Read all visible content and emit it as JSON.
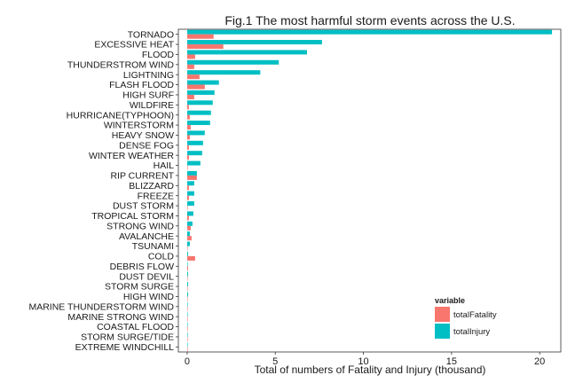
{
  "chart_data": {
    "type": "bar",
    "orientation": "horizontal",
    "title": "Fig.1 The most harmful storm events across the U.S.",
    "xlabel": "Total of numbers of Fatality and Injury (thousand)",
    "ylabel": "",
    "xlim": [
      -0.5,
      21.2
    ],
    "xticks": [
      0,
      5,
      10,
      15,
      20
    ],
    "xtick_labels": [
      "0",
      "5",
      "10",
      "15",
      "20"
    ],
    "grid": false,
    "legend": {
      "title": "variable",
      "placement": "bottom-right",
      "entries": [
        "totalFatality",
        "totalInjury"
      ]
    },
    "categories": [
      "TORNADO",
      "EXCESSIVE HEAT",
      "FLOOD",
      "THUNDERSTROM WIND",
      "LIGHTNING",
      "FLASH FLOOD",
      "HIGH SURF",
      "WILDFIRE",
      "HURRICANE(TYPHOON)",
      "WINTERSTORM",
      "HEAVY SNOW",
      "DENSE FOG",
      "WINTER WEATHER",
      "HAIL",
      "RIP CURRENT",
      "BLIZZARD",
      "FREEZE",
      "DUST STORM",
      "TROPICAL STORM",
      "STRONG WIND",
      "AVALANCHE",
      "TSUNAMI",
      "COLD",
      "DEBRIS FLOW",
      "DUST DEVIL",
      "STORM SURGE",
      "HIGH WIND",
      "MARINE THUNDERSTORM WIND",
      "MARINE STRONG WIND",
      "COASTAL FLOOD",
      "STORM SURGE/TIDE",
      "EXTREME WINDCHILL"
    ],
    "series": [
      {
        "name": "totalFatality",
        "color": "#F8766D",
        "values": [
          1.5,
          2.05,
          0.45,
          0.4,
          0.7,
          1.0,
          0.4,
          0.1,
          0.15,
          0.2,
          0.15,
          0.1,
          0.1,
          0.02,
          0.55,
          0.1,
          0.1,
          0.02,
          0.1,
          0.2,
          0.25,
          0.03,
          0.45,
          0.05,
          0.02,
          0.02,
          0.03,
          0.02,
          0.02,
          0.02,
          0.02,
          0.02
        ]
      },
      {
        "name": "totalInjury",
        "color": "#00BFC4",
        "values": [
          20.7,
          7.65,
          6.8,
          5.2,
          4.15,
          1.8,
          1.55,
          1.45,
          1.35,
          1.3,
          1.0,
          0.9,
          0.85,
          0.75,
          0.55,
          0.4,
          0.4,
          0.4,
          0.35,
          0.3,
          0.15,
          0.15,
          0.05,
          0.01,
          0.05,
          0.05,
          0.05,
          0.03,
          0.02,
          0.02,
          0.02,
          0.02
        ]
      }
    ]
  }
}
